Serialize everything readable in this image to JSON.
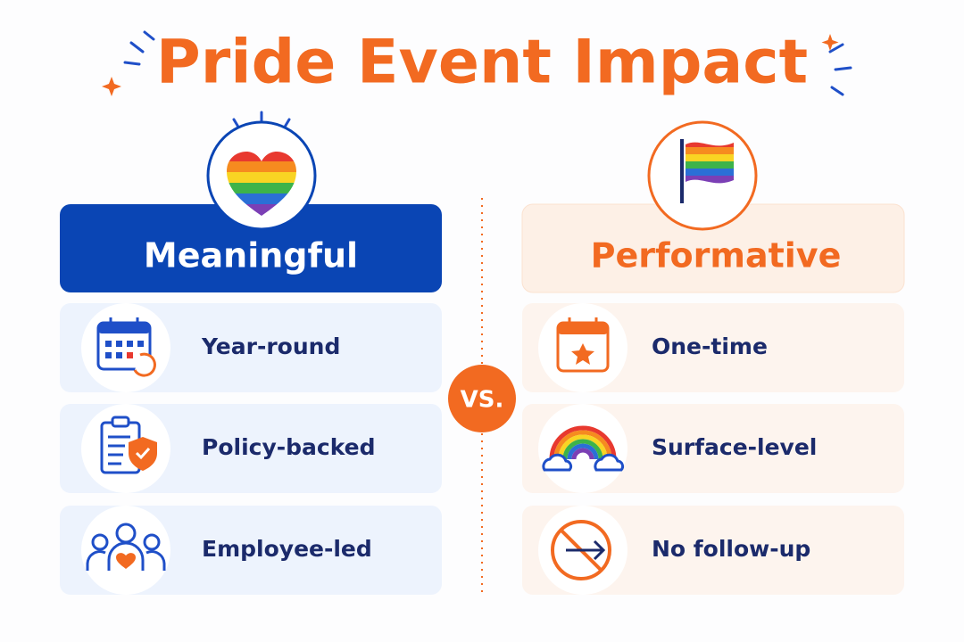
{
  "title": "Pride Event Impact",
  "vs": "VS.",
  "left": {
    "heading": "Meaningful",
    "items": [
      "Year-round",
      "Policy-backed",
      "Employee-led"
    ]
  },
  "right": {
    "heading": "Performative",
    "items": [
      "One-time",
      "Surface-level",
      "No follow-up"
    ]
  }
}
